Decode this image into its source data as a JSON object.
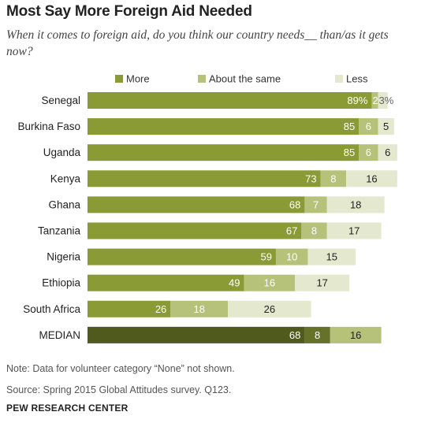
{
  "title": "Most Say More Foreign Aid Needed",
  "subtitle": "When it comes to foreign aid, do you think our country needs__ than/as it gets now?",
  "note": "Note: Data for volunteer category “None” not shown.",
  "source": "Source: Spring 2015 Global Attitudes survey. Q123.",
  "organization": "PEW RESEARCH CENTER",
  "colors": {
    "more": "#8a9a34",
    "same": "#b6c17a",
    "less": "#e3e8cf",
    "median_more": "#4f5a1c",
    "median_same": "#66722a",
    "median_less": "#b6c17a"
  },
  "chart_data": {
    "type": "bar",
    "orientation": "horizontal-stacked",
    "legend_position": "top",
    "categories": [
      "Senegal",
      "Burkina Faso",
      "Uganda",
      "Kenya",
      "Ghana",
      "Tanzania",
      "Nigeria",
      "Ethiopia",
      "South Africa",
      "MEDIAN"
    ],
    "series": [
      {
        "name": "More",
        "values": [
          89,
          85,
          85,
          73,
          68,
          67,
          59,
          49,
          26,
          68
        ],
        "labels": [
          "89%",
          "85",
          "85",
          "73",
          "68",
          "67",
          "59",
          "49",
          "26",
          "68"
        ]
      },
      {
        "name": "About the same",
        "values": [
          2,
          6,
          6,
          8,
          7,
          8,
          10,
          16,
          18,
          8
        ],
        "labels": [
          "2%",
          "6",
          "6",
          "8",
          "7",
          "8",
          "10",
          "16",
          "18",
          "8"
        ]
      },
      {
        "name": "Less",
        "values": [
          3,
          5,
          6,
          16,
          18,
          17,
          15,
          17,
          26,
          16
        ],
        "labels": [
          "3%",
          "5",
          "6",
          "16",
          "18",
          "17",
          "15",
          "17",
          "26",
          "16"
        ]
      }
    ],
    "xlim": [
      0,
      100
    ],
    "grid": false
  }
}
